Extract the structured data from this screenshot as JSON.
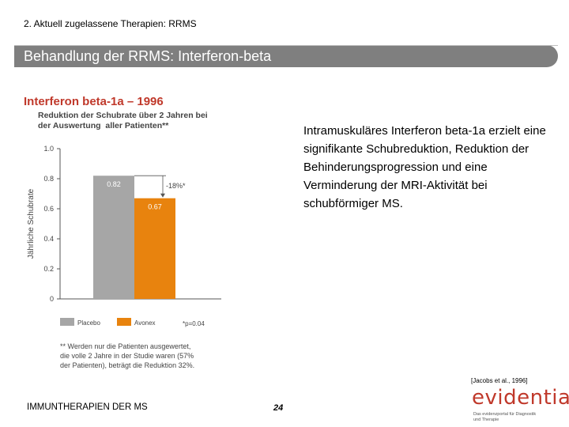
{
  "header": {
    "breadcrumb": "2. Aktuell zugelassene Therapien: RRMS",
    "title": "Behandlung der RRMS: Interferon-beta"
  },
  "subtitle": "Interferon beta-1a – 1996",
  "body_text": "Intramuskuläres Interferon beta-1a erzielt eine signifikante Schubreduktion, Reduktion der Behinderungsprogression und eine Verminderung der MRI-Aktivität bei schubförmiger MS.",
  "footnote": "** Werden nur die Patienten ausgewertet,\ndie volle 2 Jahre in der Studie waren (57%\nder Patienten), beträgt die Reduktion 32%.",
  "citation": "[Jacobs et al., 1996]",
  "footer": {
    "left": "IMMUNTHERAPIEN DER MS",
    "page": "24",
    "logo": "evidentia",
    "logo_tagline": "Das evidenzportal für Diagnostik\nund Therapie"
  },
  "chart_data": {
    "type": "bar",
    "title": "Reduktion der Schubrate über 2 Jahren bei\nder Auswertung  aller Patienten**",
    "ylabel": "Jährliche Schubrate",
    "ylim": [
      0,
      1.0
    ],
    "yticks": [
      "0",
      "0.2",
      "0.4",
      "0.6",
      "0.8",
      "1.0"
    ],
    "series": [
      {
        "name": "Placebo",
        "value": 0.82,
        "label": "0.82",
        "color": "#a6a6a6"
      },
      {
        "name": "Avonex",
        "value": 0.67,
        "label": "0.67",
        "color": "#e8830e"
      }
    ],
    "annotation": "-18%*",
    "pvalue_note": "*p=0.04",
    "grid": false,
    "legend": "bottom"
  }
}
